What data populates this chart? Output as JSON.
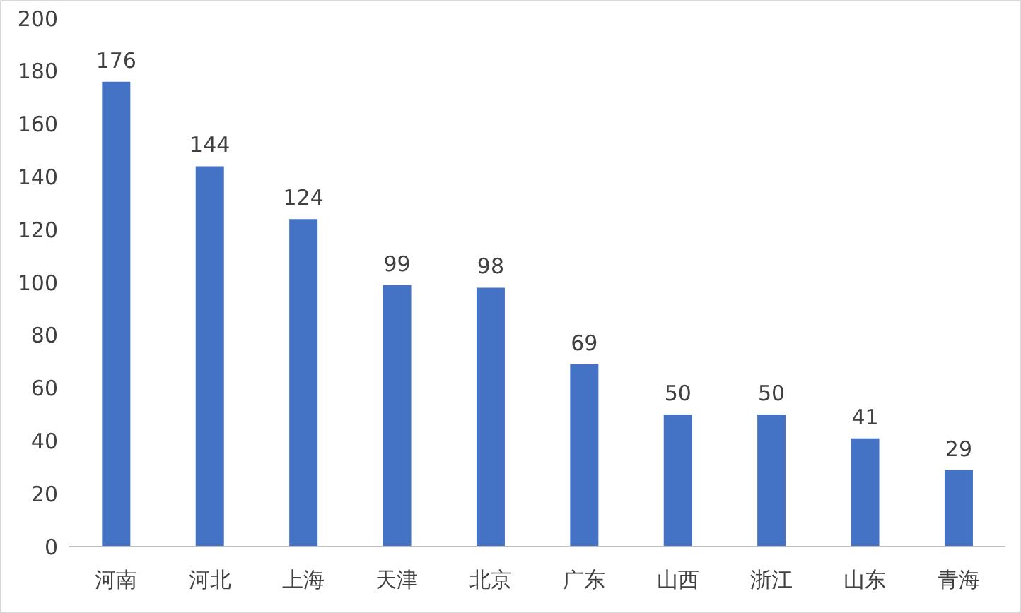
{
  "chart_data": {
    "type": "bar",
    "categories": [
      "河南",
      "河北",
      "上海",
      "天津",
      "北京",
      "广东",
      "山西",
      "浙江",
      "山东",
      "青海"
    ],
    "values": [
      176,
      144,
      124,
      99,
      98,
      69,
      50,
      50,
      41,
      29
    ],
    "color": "#4472c4",
    "ylim": [
      0,
      200
    ],
    "yticks": [
      0,
      20,
      40,
      60,
      80,
      100,
      120,
      140,
      160,
      180,
      200
    ],
    "grid": false,
    "data_labels": true
  }
}
